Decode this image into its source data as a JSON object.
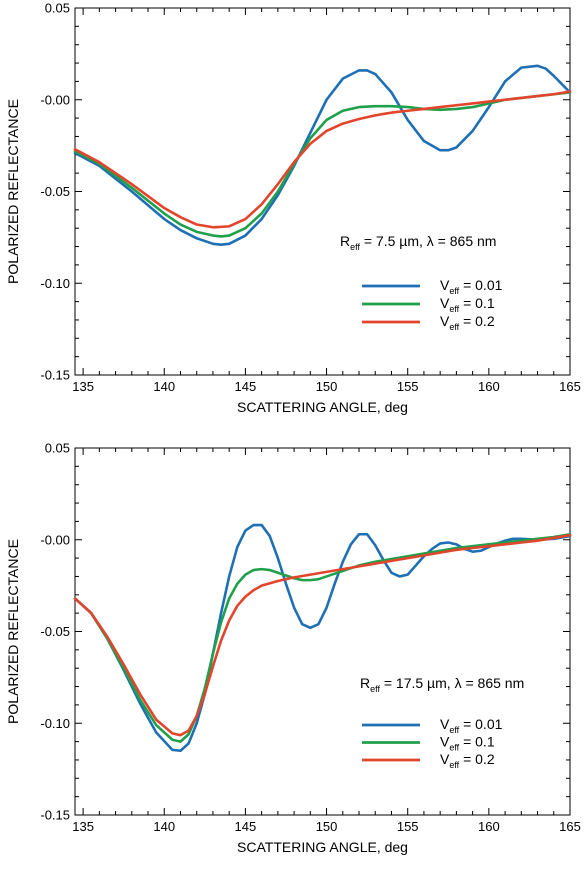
{
  "chart_data": [
    {
      "type": "line",
      "title": "",
      "xlabel": "SCATTERING ANGLE, deg",
      "ylabel": "POLARIZED REFLECTANCE",
      "xlim": [
        134.5,
        165
      ],
      "ylim": [
        -0.15,
        0.05
      ],
      "x_ticks": [
        135,
        140,
        145,
        150,
        155,
        160,
        165
      ],
      "x_tick_labels": [
        "135",
        "140",
        "145",
        "150",
        "155",
        "160",
        "165"
      ],
      "y_ticks": [
        0.05,
        0.0,
        -0.05,
        -0.1,
        -0.15
      ],
      "y_tick_labels": [
        "0.05",
        "-0.00",
        "-0.05",
        "-0.10",
        "-0.15"
      ],
      "grid": false,
      "legend_position": "center-right",
      "annotation": {
        "r_symbol": "R",
        "r_sub": "eff",
        "r_value": " = 7.5 µm, ",
        "lambda_symbol": "λ",
        "lambda_value": " = 865 nm"
      },
      "series": [
        {
          "name_main": "V",
          "name_sub": "eff",
          "name_value": " = 0.01",
          "color": "#1f6fb4",
          "x": [
            134.5,
            136,
            138,
            140,
            141,
            142,
            143,
            143.5,
            144,
            145,
            146,
            147,
            148,
            149,
            150,
            151,
            152,
            152.5,
            153,
            154,
            155,
            156,
            157,
            157.5,
            158,
            159,
            160,
            161,
            162,
            163,
            163.5,
            164,
            165
          ],
          "y": [
            -0.029,
            -0.036,
            -0.05,
            -0.065,
            -0.071,
            -0.0755,
            -0.0785,
            -0.079,
            -0.0785,
            -0.074,
            -0.065,
            -0.052,
            -0.036,
            -0.018,
            0.0,
            0.0115,
            0.016,
            0.016,
            0.014,
            0.004,
            -0.011,
            -0.0225,
            -0.0275,
            -0.0275,
            -0.026,
            -0.017,
            -0.004,
            0.01,
            0.0175,
            0.0185,
            0.017,
            0.013,
            0.004
          ]
        },
        {
          "name_main": "V",
          "name_sub": "eff",
          "name_value": " = 0.1",
          "color": "#1fa04a",
          "x": [
            134.5,
            136,
            138,
            140,
            141,
            142,
            143,
            143.5,
            144,
            145,
            146,
            147,
            148,
            149,
            150,
            151,
            152,
            153,
            154,
            155,
            156,
            157,
            158,
            159,
            160,
            161,
            162,
            163,
            164,
            165
          ],
          "y": [
            -0.028,
            -0.035,
            -0.048,
            -0.062,
            -0.068,
            -0.072,
            -0.074,
            -0.0745,
            -0.074,
            -0.07,
            -0.062,
            -0.05,
            -0.035,
            -0.021,
            -0.011,
            -0.006,
            -0.004,
            -0.0035,
            -0.0035,
            -0.004,
            -0.005,
            -0.0055,
            -0.005,
            -0.004,
            -0.002,
            0.0,
            0.001,
            0.002,
            0.003,
            0.004
          ]
        },
        {
          "name_main": "V",
          "name_sub": "eff",
          "name_value": " = 0.2",
          "color": "#e3452c",
          "x": [
            134.5,
            136,
            138,
            140,
            141,
            142,
            143,
            144,
            145,
            146,
            147,
            148,
            149,
            150,
            151,
            152,
            153,
            154,
            155,
            156,
            157,
            158,
            159,
            160,
            161,
            162,
            163,
            164,
            165
          ],
          "y": [
            -0.027,
            -0.034,
            -0.046,
            -0.059,
            -0.064,
            -0.068,
            -0.0695,
            -0.069,
            -0.065,
            -0.057,
            -0.046,
            -0.034,
            -0.024,
            -0.017,
            -0.013,
            -0.0105,
            -0.0085,
            -0.007,
            -0.006,
            -0.005,
            -0.004,
            -0.003,
            -0.002,
            -0.001,
            0.0,
            0.001,
            0.002,
            0.003,
            0.0045
          ]
        }
      ]
    },
    {
      "type": "line",
      "title": "",
      "xlabel": "SCATTERING ANGLE, deg",
      "ylabel": "POLARIZED REFLECTANCE",
      "xlim": [
        134.5,
        165
      ],
      "ylim": [
        -0.15,
        0.05
      ],
      "x_ticks": [
        135,
        140,
        145,
        150,
        155,
        160,
        165
      ],
      "x_tick_labels": [
        "135",
        "140",
        "145",
        "150",
        "155",
        "160",
        "165"
      ],
      "y_ticks": [
        0.05,
        0.0,
        -0.05,
        -0.1,
        -0.15
      ],
      "y_tick_labels": [
        "0.05",
        "-0.00",
        "-0.05",
        "-0.10",
        "-0.15"
      ],
      "grid": false,
      "legend_position": "lower-right",
      "annotation": {
        "r_symbol": "R",
        "r_sub": "eff",
        "r_value": " = 17.5 µm, ",
        "lambda_symbol": "λ",
        "lambda_value": " = 865 nm"
      },
      "series": [
        {
          "name_main": "V",
          "name_sub": "eff",
          "name_value": " = 0.01",
          "color": "#1f6fb4",
          "x": [
            134.5,
            135.5,
            136.5,
            137.5,
            138.5,
            139.5,
            140.5,
            141,
            141.5,
            142,
            142.5,
            143,
            143.5,
            144,
            144.5,
            145,
            145.5,
            146,
            146.5,
            147,
            147.5,
            148,
            148.5,
            149,
            149.5,
            150,
            150.5,
            151,
            151.5,
            152,
            152.5,
            153,
            153.5,
            154,
            154.5,
            155,
            155.5,
            156,
            156.5,
            157,
            157.5,
            158,
            158.5,
            159,
            159.5,
            160,
            160.5,
            161,
            161.5,
            162,
            163,
            164,
            165
          ],
          "y": [
            -0.032,
            -0.04,
            -0.054,
            -0.071,
            -0.089,
            -0.105,
            -0.1145,
            -0.115,
            -0.111,
            -0.1,
            -0.084,
            -0.062,
            -0.04,
            -0.02,
            -0.004,
            0.005,
            0.008,
            0.008,
            0.002,
            -0.01,
            -0.024,
            -0.037,
            -0.046,
            -0.048,
            -0.046,
            -0.037,
            -0.024,
            -0.012,
            -0.0025,
            0.003,
            0.003,
            -0.003,
            -0.011,
            -0.018,
            -0.02,
            -0.019,
            -0.014,
            -0.009,
            -0.005,
            -0.002,
            -0.0015,
            -0.0025,
            -0.005,
            -0.0065,
            -0.006,
            -0.004,
            -0.002,
            -0.0005,
            0.0005,
            0.0005,
            0.0,
            0.0005,
            0.002
          ]
        },
        {
          "name_main": "V",
          "name_sub": "eff",
          "name_value": " = 0.1",
          "color": "#1fa04a",
          "x": [
            134.5,
            135.5,
            136.5,
            137.5,
            138.5,
            139.5,
            140.5,
            141,
            141.5,
            142,
            142.5,
            143,
            143.5,
            144,
            144.5,
            145,
            145.5,
            146,
            146.5,
            147,
            147.5,
            148,
            148.5,
            149,
            149.5,
            150,
            151,
            152,
            153,
            154,
            155,
            156,
            157,
            158,
            159,
            160,
            161,
            162,
            163,
            164,
            165
          ],
          "y": [
            -0.032,
            -0.04,
            -0.054,
            -0.07,
            -0.087,
            -0.101,
            -0.109,
            -0.11,
            -0.106,
            -0.096,
            -0.081,
            -0.062,
            -0.045,
            -0.032,
            -0.024,
            -0.019,
            -0.0165,
            -0.016,
            -0.0165,
            -0.018,
            -0.0195,
            -0.021,
            -0.022,
            -0.022,
            -0.0215,
            -0.02,
            -0.017,
            -0.014,
            -0.012,
            -0.0105,
            -0.009,
            -0.0075,
            -0.006,
            -0.0045,
            -0.0035,
            -0.0025,
            -0.0015,
            -0.0005,
            0.0005,
            0.0015,
            0.003
          ]
        },
        {
          "name_main": "V",
          "name_sub": "eff",
          "name_value": " = 0.2",
          "color": "#e3452c",
          "x": [
            134.5,
            135.5,
            136.5,
            137.5,
            138.5,
            139.5,
            140.5,
            141,
            141.5,
            142,
            142.5,
            143,
            143.5,
            144,
            144.5,
            145,
            145.5,
            146,
            147,
            148,
            149,
            150,
            151,
            152,
            153,
            154,
            155,
            156,
            157,
            158,
            159,
            160,
            161,
            162,
            163,
            164,
            165
          ],
          "y": [
            -0.032,
            -0.04,
            -0.053,
            -0.068,
            -0.084,
            -0.098,
            -0.1055,
            -0.1065,
            -0.104,
            -0.096,
            -0.084,
            -0.069,
            -0.055,
            -0.044,
            -0.036,
            -0.031,
            -0.0275,
            -0.025,
            -0.0225,
            -0.0205,
            -0.019,
            -0.0175,
            -0.016,
            -0.0145,
            -0.013,
            -0.0115,
            -0.01,
            -0.0085,
            -0.007,
            -0.0055,
            -0.0045,
            -0.0035,
            -0.0025,
            -0.0015,
            -0.0005,
            0.001,
            0.0025
          ]
        }
      ]
    }
  ]
}
